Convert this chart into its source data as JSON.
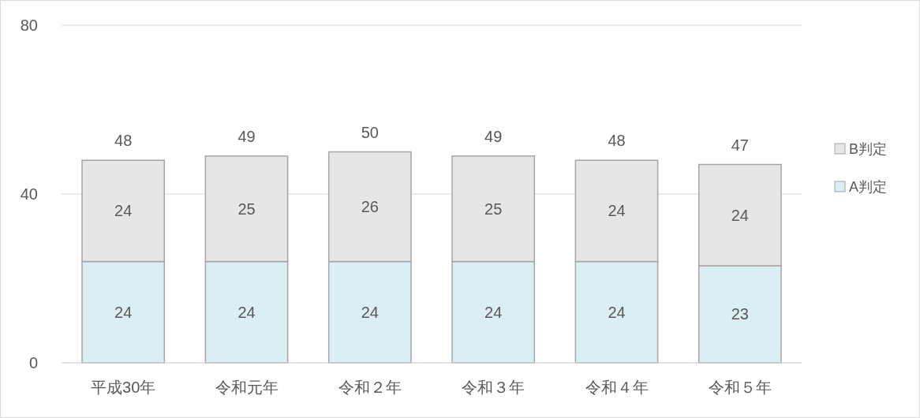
{
  "chart_data": {
    "type": "bar",
    "stacked": true,
    "categories": [
      "平成30年",
      "令和元年",
      "令和２年",
      "令和３年",
      "令和４年",
      "令和５年"
    ],
    "series": [
      {
        "name": "A判定",
        "color": "#daeef3",
        "values": [
          24,
          24,
          24,
          24,
          24,
          23
        ]
      },
      {
        "name": "B判定",
        "color": "#e7e6e6",
        "values": [
          24,
          25,
          26,
          25,
          24,
          24
        ]
      }
    ],
    "ylim": [
      0,
      80
    ],
    "yticks": [
      0,
      40,
      80
    ],
    "grid": "y",
    "legend": "right",
    "data_labels": true,
    "totals": [
      "48",
      "49",
      "50",
      "49",
      "48",
      "47"
    ]
  }
}
